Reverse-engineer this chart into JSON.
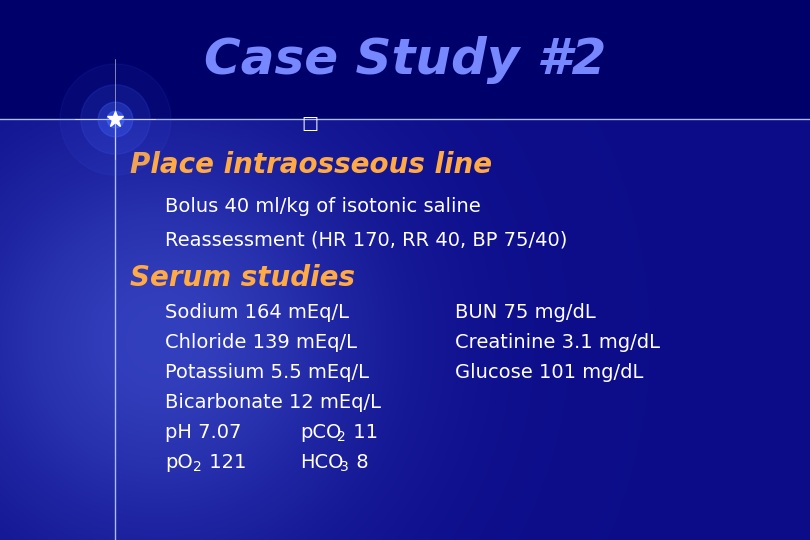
{
  "title": "Case Study #2",
  "title_color": "#7788ff",
  "title_fontsize": 36,
  "bg_color": "#00008b",
  "heading1": "Place intraosseous line",
  "heading1_color": "#ffaa44",
  "heading1_fontsize": 20,
  "heading2": "Serum studies",
  "heading2_color": "#ffaa44",
  "heading2_fontsize": 20,
  "sub_items": [
    "Bolus 40 ml/kg of isotonic saline",
    "Reassessment (HR 170, RR 40, BP 75/40)"
  ],
  "sub_color": "#ffffff",
  "sub_fontsize": 14,
  "serum_left": [
    "Sodium 164 mEq/L",
    "Chloride 139 mEq/L",
    "Potassium 5.5 mEq/L",
    "Bicarbonate 12 mEq/L"
  ],
  "serum_right": [
    "BUN 75 mg/dL",
    "Creatinine 3.1 mg/dL",
    "Glucose 101 mg/dL"
  ],
  "serum_color": "#ffffff",
  "serum_fontsize": 14,
  "divider_color": "#aabbee",
  "header_bg_color": "#00006a",
  "bullet_char": "□",
  "bullet_color": "#ffffff",
  "font_family": "DejaVu Sans"
}
